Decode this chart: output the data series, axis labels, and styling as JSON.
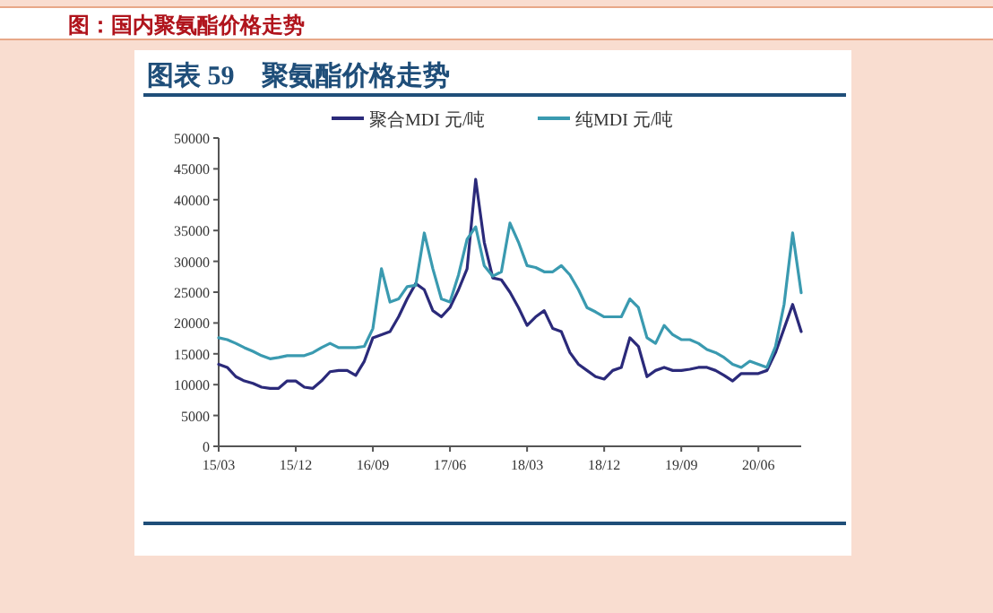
{
  "chart_data": {
    "type": "line",
    "title": "图：国内聚氨酯价格走势",
    "subtitle": "图表 59　聚氨酯价格走势",
    "legend": "top",
    "categories": [
      "15/03",
      null,
      null,
      null,
      null,
      null,
      null,
      null,
      null,
      "15/12",
      null,
      null,
      null,
      null,
      null,
      null,
      null,
      null,
      "16/09",
      null,
      null,
      null,
      null,
      null,
      null,
      null,
      null,
      "17/06",
      null,
      null,
      null,
      null,
      null,
      null,
      null,
      null,
      "18/03",
      null,
      null,
      null,
      null,
      null,
      null,
      null,
      null,
      "18/12",
      null,
      null,
      null,
      null,
      null,
      null,
      null,
      null,
      "19/09",
      null,
      null,
      null,
      null,
      null,
      null,
      null,
      null,
      "20/06",
      null,
      null,
      null,
      null,
      null
    ],
    "ylim": [
      0,
      50000
    ],
    "yticks": [
      0,
      5000,
      10000,
      15000,
      20000,
      25000,
      30000,
      35000,
      40000,
      45000,
      50000
    ],
    "series": [
      {
        "name": "聚合MDI 元/吨",
        "color": "#2b2a7a",
        "values": [
          13300,
          12800,
          11300,
          10600,
          10200,
          9600,
          9400,
          9400,
          10600,
          10600,
          9600,
          9400,
          10600,
          12100,
          12300,
          12300,
          11500,
          13800,
          17600,
          18100,
          18600,
          21000,
          23900,
          26400,
          25400,
          22000,
          21000,
          22500,
          25400,
          28800,
          43300,
          33100,
          27300,
          27000,
          25000,
          22500,
          19600,
          21000,
          22000,
          19100,
          18600,
          15200,
          13300,
          12300,
          11300,
          10900,
          12300,
          12800,
          17600,
          16200,
          11300,
          12300,
          12800,
          12300,
          12300,
          12500,
          12800,
          12800,
          12300,
          11500,
          10600,
          11800,
          11800,
          11800,
          12300,
          15200,
          19100,
          23000,
          18600
        ]
      },
      {
        "name": "纯MDI 元/吨",
        "color": "#3a9ab0",
        "values": [
          17600,
          17300,
          16700,
          16000,
          15400,
          14700,
          14200,
          14400,
          14700,
          14700,
          14700,
          15200,
          16000,
          16700,
          16000,
          16000,
          16000,
          16200,
          19100,
          28800,
          23400,
          23900,
          25900,
          26100,
          34600,
          28800,
          23900,
          23400,
          27800,
          33600,
          35600,
          29300,
          27600,
          28300,
          36200,
          33100,
          29300,
          29000,
          28300,
          28300,
          29300,
          27800,
          25400,
          22500,
          21800,
          21000,
          21000,
          21000,
          23900,
          22500,
          17600,
          16700,
          19600,
          18100,
          17300,
          17300,
          16700,
          15700,
          15200,
          14400,
          13300,
          12800,
          13800,
          13300,
          12800,
          16200,
          23000,
          34600,
          24900
        ]
      }
    ]
  }
}
